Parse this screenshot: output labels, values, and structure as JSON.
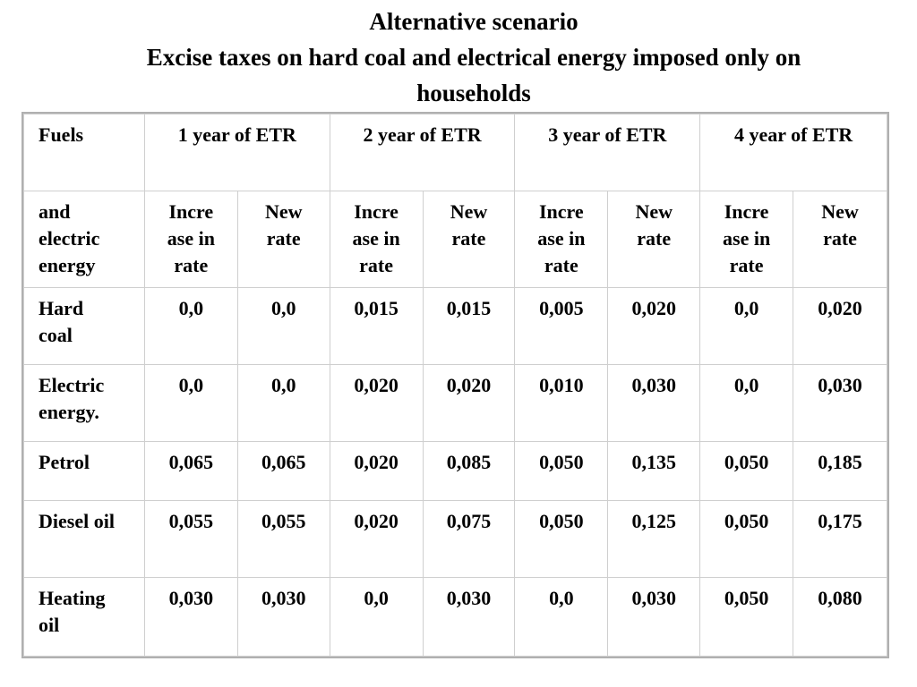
{
  "title": {
    "line1": "Alternative scenario",
    "line2": "Excise taxes on hard coal and electrical energy imposed only on",
    "line3": "households"
  },
  "table": {
    "header": {
      "fuels": "Fuels",
      "years": [
        "1 year of ETR",
        "2 year of ETR",
        "3 year of ETR",
        "4 year of ETR"
      ]
    },
    "subheader": {
      "first": [
        "and",
        "electric",
        "energy"
      ],
      "increase": [
        "Incre",
        "ase in",
        "rate"
      ],
      "new_rate": [
        "New",
        "rate"
      ]
    },
    "rows": [
      {
        "fuel": [
          "Hard",
          "coal"
        ],
        "values": [
          "0,0",
          "0,0",
          "0,015",
          "0,015",
          "0,005",
          "0,020",
          "0,0",
          "0,020"
        ]
      },
      {
        "fuel": [
          "Electric",
          "energy."
        ],
        "values": [
          "0,0",
          "0,0",
          "0,020",
          "0,020",
          "0,010",
          "0,030",
          "0,0",
          "0,030"
        ]
      },
      {
        "fuel": [
          "Petrol"
        ],
        "values": [
          "0,065",
          "0,065",
          "0,020",
          "0,085",
          "0,050",
          "0,135",
          "0,050",
          "0,185"
        ]
      },
      {
        "fuel": [
          "Diesel oil"
        ],
        "values": [
          "0,055",
          "0,055",
          "0,020",
          "0,075",
          "0,050",
          "0,125",
          "0,050",
          "0,175"
        ]
      },
      {
        "fuel": [
          "Heating",
          "oil"
        ],
        "values": [
          "0,030",
          "0,030",
          "0,0",
          "0,030",
          "0,0",
          "0,030",
          "0,050",
          "0,080"
        ]
      }
    ]
  }
}
